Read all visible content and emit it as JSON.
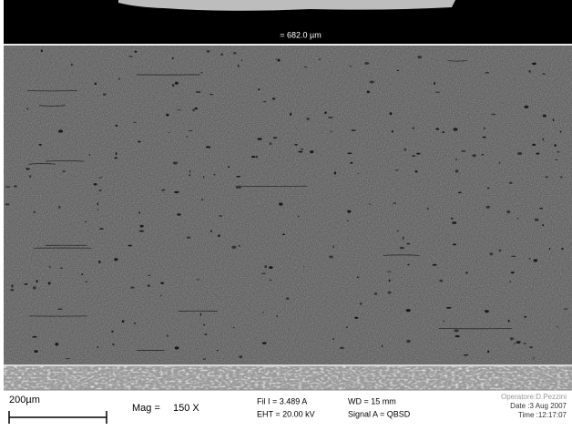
{
  "micrograph": {
    "measurement": "= 682.0 µm"
  },
  "info_bar": {
    "scale_bar": "200µm",
    "mag_label": "Mag =",
    "mag_value": "150 X",
    "fil": "Fil I = 3.489 A",
    "eht": "EHT = 20.00 kV",
    "wd": "WD =  15 mm",
    "signal": "Signal A = QBSD",
    "operator": "Operatore:D.Pezzini",
    "date": "Date :3 Aug 2007",
    "time": "Time :12:17:07"
  }
}
